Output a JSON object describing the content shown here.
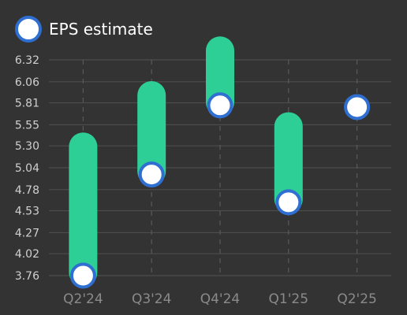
{
  "legend": {
    "label": "EPS estimate"
  },
  "colors": {
    "background": "#333333",
    "bar": "#2ecf96",
    "marker_fill": "#ffffff",
    "marker_stroke": "#2f6fd1",
    "gridline": "#4d4d4d",
    "vertical_gridline": "#5a5a5a"
  },
  "chart_data": {
    "type": "bar",
    "subtype": "floating-range with markers",
    "categories": [
      "Q2'24",
      "Q3'24",
      "Q4'24",
      "Q1'25",
      "Q2'25"
    ],
    "y_ticks": [
      "3.76",
      "4.02",
      "4.27",
      "4.53",
      "4.78",
      "5.04",
      "5.30",
      "5.55",
      "5.81",
      "6.06",
      "6.32"
    ],
    "ylim": [
      3.76,
      6.32
    ],
    "series": [
      {
        "name": "EPS estimate",
        "values": [
          3.76,
          4.96,
          5.78,
          4.63,
          5.76
        ]
      }
    ],
    "bars": [
      {
        "low": 3.76,
        "high": 5.29
      },
      {
        "low": 4.96,
        "high": 5.9
      },
      {
        "low": 5.78,
        "high": 6.43
      },
      {
        "low": 4.63,
        "high": 5.53
      },
      null
    ],
    "legend_position": "top-left",
    "grid": {
      "horizontal": true,
      "vertical_dashed": true
    }
  }
}
